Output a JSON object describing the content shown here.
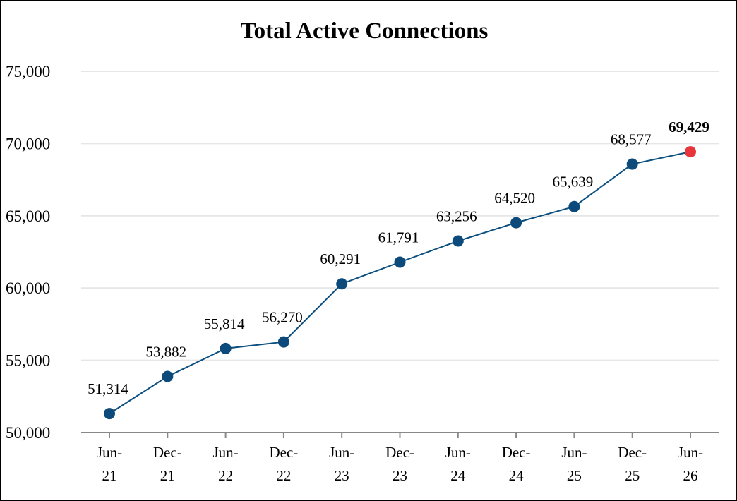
{
  "chart_data": {
    "type": "line",
    "title": "Total Active Connections",
    "xlabel": "",
    "ylabel": "",
    "ylim": [
      50000,
      75000
    ],
    "yticks": [
      50000,
      55000,
      60000,
      65000,
      70000,
      75000
    ],
    "ytick_labels": [
      "50,000",
      "55,000",
      "60,000",
      "65,000",
      "70,000",
      "75,000"
    ],
    "grid": true,
    "legend": "none",
    "categories": [
      [
        "Jun-",
        "21"
      ],
      [
        "Dec-",
        "21"
      ],
      [
        "Jun-",
        "22"
      ],
      [
        "Dec-",
        "22"
      ],
      [
        "Jun-",
        "23"
      ],
      [
        "Dec-",
        "23"
      ],
      [
        "Jun-",
        "24"
      ],
      [
        "Dec-",
        "24"
      ],
      [
        "Jun-",
        "25"
      ],
      [
        "Dec-",
        "25"
      ],
      [
        "Jun-",
        "26"
      ]
    ],
    "series": [
      {
        "values": [
          51314,
          53882,
          55814,
          56270,
          60291,
          61791,
          63256,
          64520,
          65639,
          68577,
          69429
        ],
        "labels": [
          "51,314",
          "53,882",
          "55,814",
          "56,270",
          "60,291",
          "61,791",
          "63,256",
          "64,520",
          "65,639",
          "68,577",
          "69,429"
        ]
      }
    ],
    "colors": {
      "line": "#0b4f7f",
      "marker": "#0b4a7a",
      "highlight_marker": "#e8353a",
      "grid": "#e6e6e6",
      "axis": "#888888"
    },
    "highlight_last_point": true
  }
}
